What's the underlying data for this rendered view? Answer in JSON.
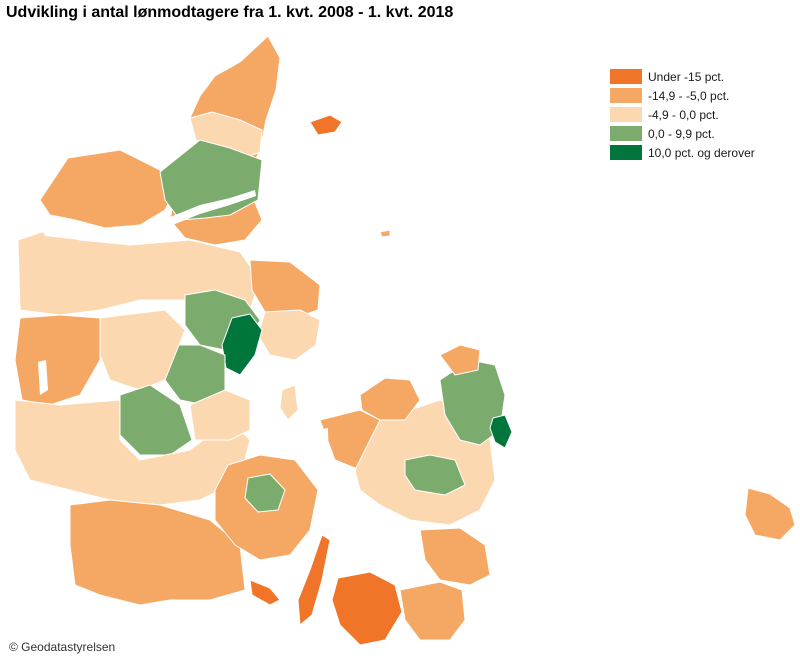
{
  "title": "Udvikling i antal lønmodtagere fra 1. kvt. 2008 - 1. kvt. 2018",
  "legend": [
    {
      "label": "Under -15 pct.",
      "color": "#f07529"
    },
    {
      "label": "-14,9 - -5,0 pct.",
      "color": "#f5a864"
    },
    {
      "label": "-4,9 - 0,0 pct.",
      "color": "#fbd8b0"
    },
    {
      "label": "0,0 - 9,9 pct.",
      "color": "#7cab6e"
    },
    {
      "label": "10,0 pct. og derover",
      "color": "#00753c"
    }
  ],
  "copyright": "© Geodatastyrelsen",
  "colors": {
    "under_15": "#f07529",
    "minus_15_5": "#f5a864",
    "minus_5_0": "#fbd8b0",
    "plus_0_10": "#7cab6e",
    "plus_10": "#00753c",
    "border": "#ffffff",
    "water": "#ffffff"
  }
}
